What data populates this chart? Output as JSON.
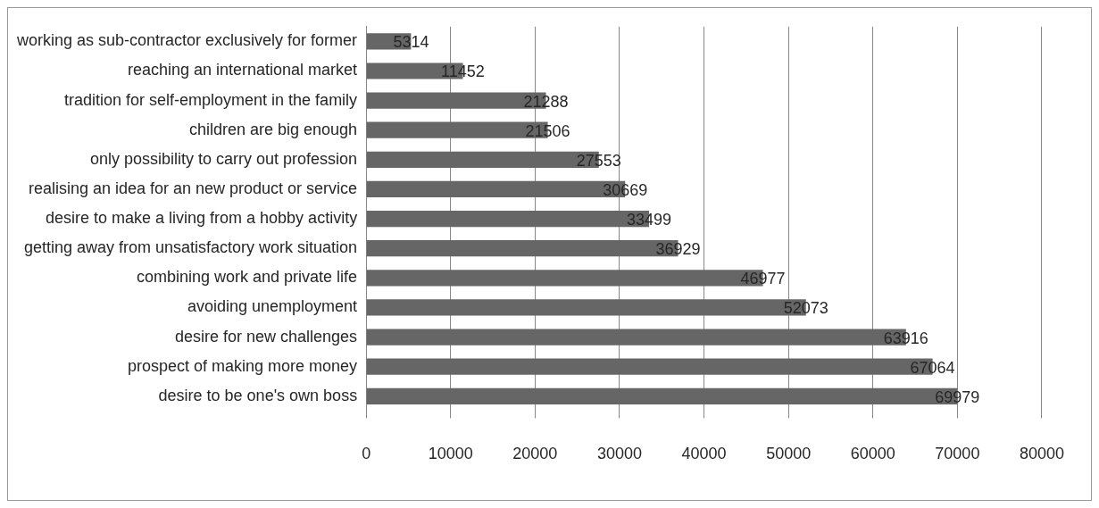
{
  "chart_data": {
    "type": "bar",
    "orientation": "horizontal",
    "categories": [
      "working as sub-contractor exclusively for former",
      "reaching an international market",
      "tradition for self-employment in the family",
      "children are big enough",
      "only possibility to carry out profession",
      "realising an idea for an new product or service",
      "desire to make a living from a hobby activity",
      "getting away from unsatisfactory work situation",
      "combining work and private life",
      "avoiding unemployment",
      "desire for new challenges",
      "prospect of making more money",
      "desire to be one's own boss"
    ],
    "values": [
      5314,
      11452,
      21288,
      21506,
      27553,
      30669,
      33499,
      36929,
      46977,
      52073,
      63916,
      67064,
      69979
    ],
    "color": "#666666",
    "xlim": [
      0,
      80000
    ],
    "xticks": [
      0,
      10000,
      20000,
      30000,
      40000,
      50000,
      60000,
      70000,
      80000
    ],
    "grid": "x",
    "data_labels": true,
    "legend": false
  }
}
